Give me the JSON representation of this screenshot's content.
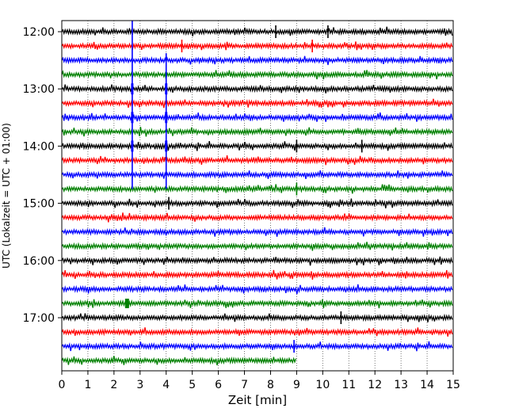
{
  "chart_data": {
    "type": "line",
    "title": "",
    "xlabel": "Zeit  [min]",
    "ylabel": "UTC (Lokalzeit = UTC + 01:00)",
    "xlim": [
      0,
      15
    ],
    "xticks": [
      "0",
      "1",
      "2",
      "3",
      "4",
      "5",
      "6",
      "7",
      "8",
      "9",
      "10",
      "11",
      "12",
      "13",
      "14",
      "15"
    ],
    "yticks": [
      "12:00",
      "13:00",
      "14:00",
      "15:00",
      "16:00",
      "17:00"
    ],
    "row_interval_min": 15,
    "grid": "vertical dotted at each minute",
    "row_colors": [
      "#000000",
      "#ff0000",
      "#0000ff",
      "#008000"
    ],
    "rows": [
      {
        "start": "12:00",
        "end_min": 15
      },
      {
        "start": "12:15",
        "end_min": 15
      },
      {
        "start": "12:30",
        "end_min": 15
      },
      {
        "start": "12:45",
        "end_min": 15
      },
      {
        "start": "13:00",
        "end_min": 15
      },
      {
        "start": "13:15",
        "end_min": 15
      },
      {
        "start": "13:30",
        "end_min": 15
      },
      {
        "start": "13:45",
        "end_min": 15
      },
      {
        "start": "14:00",
        "end_min": 15
      },
      {
        "start": "14:15",
        "end_min": 15
      },
      {
        "start": "14:30",
        "end_min": 15
      },
      {
        "start": "14:45",
        "end_min": 15
      },
      {
        "start": "15:00",
        "end_min": 15
      },
      {
        "start": "15:15",
        "end_min": 15
      },
      {
        "start": "15:30",
        "end_min": 15
      },
      {
        "start": "15:45",
        "end_min": 15
      },
      {
        "start": "16:00",
        "end_min": 15
      },
      {
        "start": "16:15",
        "end_min": 15
      },
      {
        "start": "16:30",
        "end_min": 15
      },
      {
        "start": "16:45",
        "end_min": 15
      },
      {
        "start": "17:00",
        "end_min": 15
      },
      {
        "start": "17:15",
        "end_min": 15
      },
      {
        "start": "17:30",
        "end_min": 15
      },
      {
        "start": "17:45",
        "end_min": 9
      }
    ],
    "events": [
      {
        "minute": 2.7,
        "color": "#0000ff",
        "row_from": 0,
        "row_to": 11,
        "strength": "large"
      },
      {
        "minute": 4.0,
        "color": "#0000ff",
        "row_from": 2,
        "row_to": 11,
        "strength": "large"
      },
      {
        "minute": 8.2,
        "row": 0,
        "strength": "small"
      },
      {
        "minute": 10.2,
        "row": 0,
        "strength": "small"
      },
      {
        "minute": 4.6,
        "row": 1,
        "strength": "small"
      },
      {
        "minute": 9.6,
        "row": 1,
        "strength": "small"
      },
      {
        "minute": 9.0,
        "row": 8,
        "strength": "small"
      },
      {
        "minute": 11.5,
        "row": 8,
        "strength": "small"
      },
      {
        "minute": 9.0,
        "row": 11,
        "strength": "small"
      },
      {
        "minute": 4.1,
        "row": 12,
        "strength": "small"
      },
      {
        "minute": 2.5,
        "row": 19,
        "strength": "medium"
      },
      {
        "minute": 10.7,
        "row": 20,
        "strength": "small"
      },
      {
        "minute": 8.9,
        "row": 22,
        "strength": "small"
      }
    ]
  }
}
